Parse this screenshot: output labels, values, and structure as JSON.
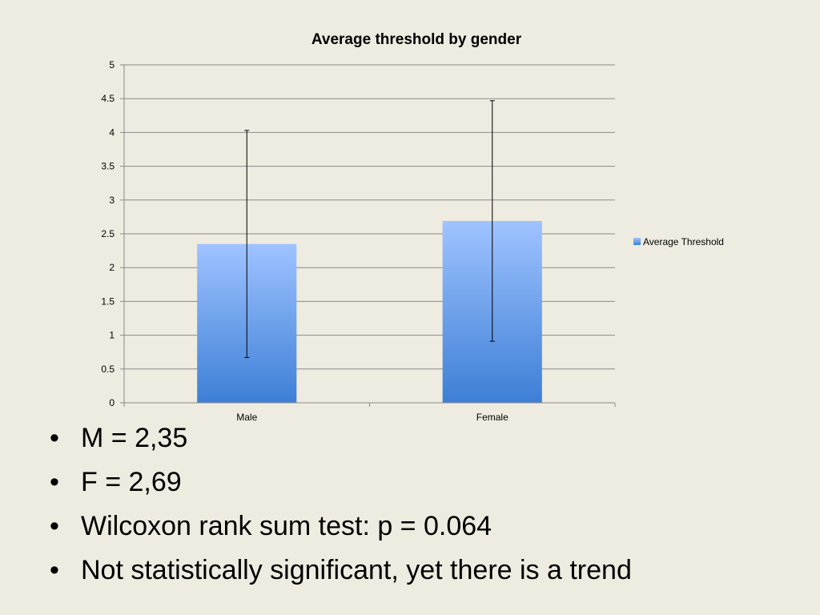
{
  "chart_data": {
    "type": "bar",
    "title": "Average threshold by gender",
    "categories": [
      "Male",
      "Female"
    ],
    "series": [
      {
        "name": "Average Threshold",
        "values": [
          2.35,
          2.69
        ],
        "error_low": [
          0.67,
          0.91
        ],
        "error_high": [
          4.03,
          4.47
        ]
      }
    ],
    "ylim": [
      0,
      5
    ],
    "yticks": [
      "0",
      "0.5",
      "1",
      "1.5",
      "2",
      "2.5",
      "3",
      "3.5",
      "4",
      "4.5",
      "5"
    ],
    "grid": true,
    "legend_position": "right",
    "colors": {
      "bar_top": "#9fc3ff",
      "bar_bottom": "#3d7fd6"
    }
  },
  "bullets": [
    "M = 2,35",
    "F = 2,69",
    "Wilcoxon rank sum test: p = 0.064",
    "Not statistically significant, yet there is a trend"
  ],
  "bullet_glyph": "•"
}
